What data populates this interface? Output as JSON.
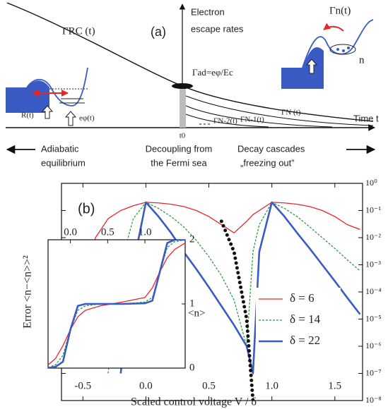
{
  "diagram": {
    "panel_label": "(a)",
    "axis_title_lines": [
      "Electron",
      "escape rates"
    ],
    "time_axis_label": "Time t",
    "t0_label": "t0",
    "gamma_rc": "ΓRC (t)",
    "gamma_ad": "Γad=eφ/Ec",
    "gamma_n": "ΓN (t)",
    "gamma_n1": "ΓN-1(t)",
    "gamma_n2": "ΓN-2(t)",
    "gamma_n_small": "Γn(t)",
    "n_label": "n",
    "r_label": "R(t)",
    "ephi_label": "eφ(t)",
    "regimes": [
      {
        "lines": [
          "Adiabatic",
          "equilibrium"
        ]
      },
      {
        "lines": [
          "Decoupling from",
          "the Fermi sea"
        ]
      },
      {
        "lines": [
          "Decay cascades",
          "„freezing out”"
        ]
      }
    ]
  },
  "chart_data": {
    "type": "line",
    "panel_label": "(b)",
    "x_label": "Scaled control voltage V / δ",
    "y_label": "Error <n−<n>>²",
    "log_y": true,
    "legend": "right",
    "xlim": [
      -0.67,
      1.72
    ],
    "xticks": [
      -0.5,
      {
        "value": 0,
        "label": "0.0"
      },
      0.5,
      {
        "value": 1,
        "label": "1.0"
      },
      1.5
    ],
    "ylim": [
      1e-08,
      1
    ],
    "yticks": [
      {
        "value": 1,
        "label": "10⁰"
      },
      {
        "value": 0.1,
        "label": "10⁻¹"
      },
      {
        "value": 0.01,
        "label": "10⁻²"
      },
      {
        "value": 0.001,
        "label": "10⁻³"
      },
      {
        "value": 0.0001,
        "label": "10⁻⁴"
      },
      {
        "value": 1e-05,
        "label": "10⁻⁵"
      },
      {
        "value": 1e-06,
        "label": "10⁻⁶"
      },
      {
        "value": 1e-07,
        "label": "10⁻⁷"
      },
      {
        "value": 1e-08,
        "label": "10⁻⁸"
      }
    ],
    "x": [
      -0.6,
      -0.5,
      -0.4,
      -0.3,
      -0.2,
      -0.1,
      0,
      0.1,
      0.2,
      0.3,
      0.4,
      0.5,
      0.6,
      0.7,
      0.8,
      0.85,
      0.9,
      1.0,
      1.1,
      1.2,
      1.3,
      1.4,
      1.5,
      1.6,
      1.7
    ],
    "series": [
      {
        "name": "δ = 6",
        "color": "#e8262a",
        "style": "solid",
        "values": [
          null,
          0.0001,
          0.01,
          0.05,
          0.1,
          0.15,
          0.2,
          0.19,
          0.17,
          0.14,
          0.1,
          0.06,
          0.03,
          0.015,
          0.04,
          0.07,
          0.1,
          0.2,
          0.19,
          0.17,
          0.14,
          0.1,
          0.06,
          0.03,
          0.02
        ]
      },
      {
        "name": "δ = 14",
        "color": "#2e9a3c",
        "style": "dashed",
        "values": [
          null,
          null,
          null,
          1e-07,
          0.001,
          0.05,
          0.2,
          0.12,
          0.06,
          0.025,
          0.008,
          0.002,
          0.0004,
          5e-05,
          1e-06,
          0.003,
          0.03,
          0.2,
          0.12,
          0.06,
          0.025,
          0.01,
          0.004,
          0.0015,
          0.0006
        ]
      },
      {
        "name": "δ = 22",
        "color": "#3a5bc4",
        "style": "thick",
        "values": [
          null,
          null,
          null,
          null,
          1e-07,
          0.001,
          0.2,
          0.06,
          0.015,
          0.003,
          0.0007,
          0.00015,
          3e-05,
          6e-06,
          1e-06,
          1e-07,
          0.003,
          0.2,
          0.06,
          0.015,
          0.004,
          0.001,
          0.00025,
          6e-05,
          1.5e-05
        ]
      },
      {
        "color": "#111111",
        "style": "dots",
        "values": [
          null,
          null,
          null,
          null,
          null,
          null,
          null,
          null,
          null,
          null,
          null,
          null,
          0.04,
          0.003,
          1e-05,
          1e-08,
          null,
          null,
          null,
          null,
          null,
          null,
          null,
          null,
          null
        ]
      }
    ],
    "inset": {
      "y_label": "<n>",
      "xlim": [
        -0.3,
        1.54
      ],
      "xticks": [
        {
          "value": 0,
          "label": "0.0"
        },
        0.5,
        {
          "value": 1,
          "label": "1.0"
        }
      ],
      "ylim": [
        0,
        2
      ],
      "yticks": [
        0,
        1,
        2
      ],
      "x": [
        -0.3,
        -0.2,
        -0.1,
        0,
        0.1,
        0.2,
        0.4,
        0.7,
        1.0,
        1.1,
        1.2,
        1.3,
        1.4,
        1.54
      ],
      "series": [
        {
          "color": "#e8262a",
          "style": "solid",
          "values": [
            0.05,
            0.15,
            0.35,
            0.6,
            0.8,
            0.9,
            0.97,
            1.03,
            1.1,
            1.25,
            1.5,
            1.72,
            1.85,
            1.95
          ]
        },
        {
          "color": "#2e9a3c",
          "style": "dashed",
          "values": [
            0.01,
            0.05,
            0.2,
            0.6,
            0.9,
            0.97,
            1,
            1,
            1.03,
            1.1,
            1.5,
            1.88,
            1.97,
            2
          ]
        },
        {
          "color": "#3a5bc4",
          "style": "thick",
          "values": [
            0,
            0.02,
            0.1,
            0.6,
            0.97,
            1,
            1,
            1,
            1.01,
            1.05,
            1.5,
            1.95,
            2,
            2
          ]
        }
      ]
    }
  }
}
